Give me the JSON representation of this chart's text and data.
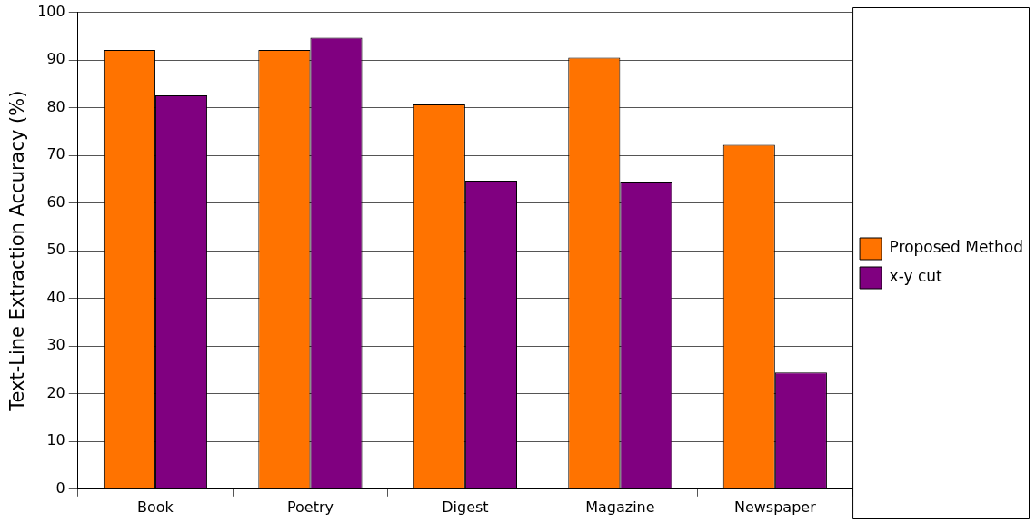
{
  "chart_data": {
    "type": "bar",
    "ylabel": "Text-Line Extraction Accuracy (%)",
    "categories": [
      "Book",
      "Poetry",
      "Digest",
      "Magazine",
      "Newspaper"
    ],
    "series": [
      {
        "name": "Proposed Method",
        "color": "#ff7300",
        "values": [
          92.1,
          92.1,
          80.7,
          90.5,
          72.2
        ]
      },
      {
        "name": "x-y cut",
        "color": "#800080",
        "values": [
          82.6,
          94.7,
          64.7,
          64.5,
          24.5
        ]
      }
    ],
    "ylim": [
      0,
      100
    ],
    "yticks": [
      0,
      10,
      20,
      30,
      40,
      50,
      60,
      70,
      80,
      90,
      100
    ],
    "grid": "y",
    "legend": "right"
  }
}
